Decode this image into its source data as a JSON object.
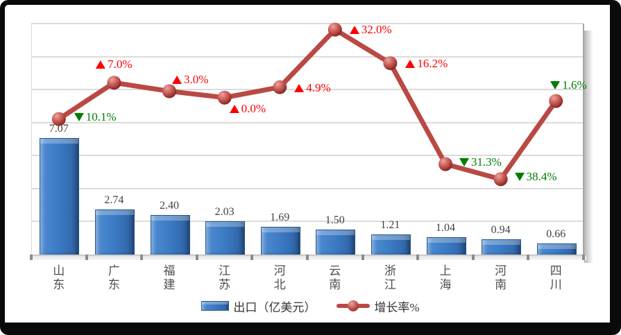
{
  "chart_data": {
    "type": "bar+line",
    "title": "",
    "categories": [
      "山东",
      "广东",
      "福建",
      "江苏",
      "河北",
      "云南",
      "浙江",
      "上海",
      "河南",
      "四川"
    ],
    "series": [
      {
        "name": "出口（亿美元）",
        "type": "bar",
        "color": "#3D7CC6",
        "values": [
          7.07,
          2.74,
          2.4,
          2.03,
          1.69,
          1.5,
          1.21,
          1.04,
          0.94,
          0.66
        ],
        "value_labels": [
          "7.07",
          "2.74",
          "2.40",
          "2.03",
          "1.69",
          "1.50",
          "1.21",
          "1.04",
          "0.94",
          "0.66"
        ]
      },
      {
        "name": "增长率%",
        "type": "line",
        "color": "#B94944",
        "values": [
          -10.1,
          7.0,
          3.0,
          0.0,
          4.9,
          32.0,
          16.2,
          -31.3,
          -38.4,
          -1.6
        ],
        "point_labels": [
          {
            "text": "10.1%",
            "direction": "down"
          },
          {
            "text": "7.0%",
            "direction": "up"
          },
          {
            "text": "3.0%",
            "direction": "up"
          },
          {
            "text": "0.0%",
            "direction": "up"
          },
          {
            "text": "4.9%",
            "direction": "up"
          },
          {
            "text": "32.0%",
            "direction": "up"
          },
          {
            "text": "16.2%",
            "direction": "up"
          },
          {
            "text": "31.3%",
            "direction": "down"
          },
          {
            "text": "38.4%",
            "direction": "down"
          },
          {
            "text": "1.6%",
            "direction": "down"
          }
        ]
      }
    ],
    "legend": {
      "position": "bottom-center",
      "items": [
        {
          "label": "出口（亿美元）",
          "swatch": "bar"
        },
        {
          "label": "增长率%",
          "swatch": "line"
        }
      ]
    },
    "axes": {
      "x_tick_orientation": "vertical-stacked",
      "primary_ylim": [
        0,
        14
      ],
      "gridlines": "horizontal"
    },
    "colors": {
      "increase": "#FE0000",
      "decrease": "#007E00",
      "bar_fill": "#3D7CC6",
      "line_stroke": "#B94944",
      "gridline": "#DBDBDB",
      "value_label": "#3F3F3F",
      "axis_label": "#4D4D4D"
    }
  }
}
